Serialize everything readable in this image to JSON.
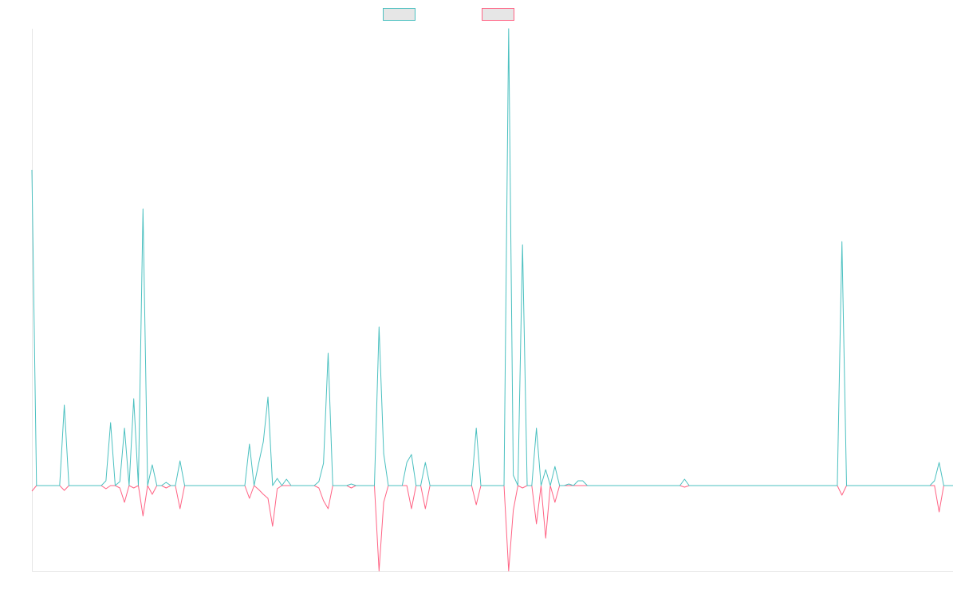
{
  "chart_data": {
    "type": "line",
    "ylim": [
      -107,
      573
    ],
    "series": [
      {
        "color": "#4bc0c0",
        "values": [
          396,
          0,
          0,
          0,
          0,
          0,
          0,
          101,
          0,
          0,
          0,
          0,
          0,
          0,
          0,
          0,
          6,
          79,
          0,
          5,
          72,
          0,
          109,
          0,
          347,
          0,
          26,
          0,
          0,
          4,
          0,
          0,
          31,
          0,
          0,
          0,
          0,
          0,
          0,
          0,
          0,
          0,
          0,
          0,
          0,
          0,
          0,
          52,
          0,
          28,
          55,
          111,
          0,
          9,
          0,
          8,
          0,
          0,
          0,
          0,
          0,
          0,
          5,
          28,
          166,
          0,
          0,
          0,
          0,
          2,
          0,
          0,
          0,
          0,
          0,
          199,
          40,
          0,
          0,
          0,
          0,
          29,
          39,
          0,
          0,
          29,
          0,
          0,
          0,
          0,
          0,
          0,
          0,
          0,
          0,
          0,
          72,
          0,
          0,
          0,
          0,
          0,
          0,
          573,
          13,
          0,
          302,
          0,
          0,
          72,
          0,
          20,
          0,
          24,
          0,
          0,
          2,
          0,
          6,
          6,
          0,
          0,
          0,
          0,
          0,
          0,
          0,
          0,
          0,
          0,
          0,
          0,
          0,
          0,
          0,
          0,
          0,
          0,
          0,
          0,
          0,
          8,
          0,
          0,
          0,
          0,
          0,
          0,
          0,
          0,
          0,
          0,
          0,
          0,
          0,
          0,
          0,
          0,
          0,
          0,
          0,
          0,
          0,
          0,
          0,
          0,
          0,
          0,
          0,
          0,
          0,
          0,
          0,
          0,
          0,
          306,
          0,
          0,
          0,
          0,
          0,
          0,
          0,
          0,
          0,
          0,
          0,
          0,
          0,
          0,
          0,
          0,
          0,
          0,
          0,
          6,
          29,
          0,
          0,
          0
        ]
      },
      {
        "color": "#ff6384",
        "values": [
          -7,
          0,
          0,
          0,
          0,
          0,
          0,
          -6,
          0,
          0,
          0,
          0,
          0,
          0,
          0,
          0,
          -4,
          0,
          0,
          -3,
          -21,
          0,
          -3,
          0,
          -38,
          0,
          -11,
          0,
          0,
          -3,
          0,
          0,
          -29,
          0,
          0,
          0,
          0,
          0,
          0,
          0,
          0,
          0,
          0,
          0,
          0,
          0,
          0,
          -16,
          0,
          -5,
          -11,
          -16,
          -51,
          -4,
          0,
          0,
          0,
          0,
          0,
          0,
          0,
          0,
          -3,
          -19,
          -29,
          0,
          0,
          0,
          0,
          -3,
          0,
          0,
          0,
          0,
          0,
          -107,
          -21,
          0,
          0,
          0,
          0,
          0,
          -29,
          0,
          0,
          -29,
          0,
          0,
          0,
          0,
          0,
          0,
          0,
          0,
          0,
          0,
          -24,
          0,
          0,
          0,
          0,
          0,
          0,
          -107,
          -31,
          0,
          -3,
          0,
          0,
          -48,
          0,
          -66,
          0,
          -21,
          0,
          0,
          0,
          0,
          0,
          0,
          0,
          0,
          0,
          0,
          0,
          0,
          0,
          0,
          0,
          0,
          0,
          0,
          0,
          0,
          0,
          0,
          0,
          0,
          0,
          0,
          0,
          -2,
          0,
          0,
          0,
          0,
          0,
          0,
          0,
          0,
          0,
          0,
          0,
          0,
          0,
          0,
          0,
          0,
          0,
          0,
          0,
          0,
          0,
          0,
          0,
          0,
          0,
          0,
          0,
          0,
          0,
          0,
          0,
          0,
          0,
          -12,
          0,
          0,
          0,
          0,
          0,
          0,
          0,
          0,
          0,
          0,
          0,
          0,
          0,
          0,
          0,
          0,
          0,
          0,
          0,
          0,
          -33,
          0,
          0,
          0
        ]
      }
    ]
  }
}
